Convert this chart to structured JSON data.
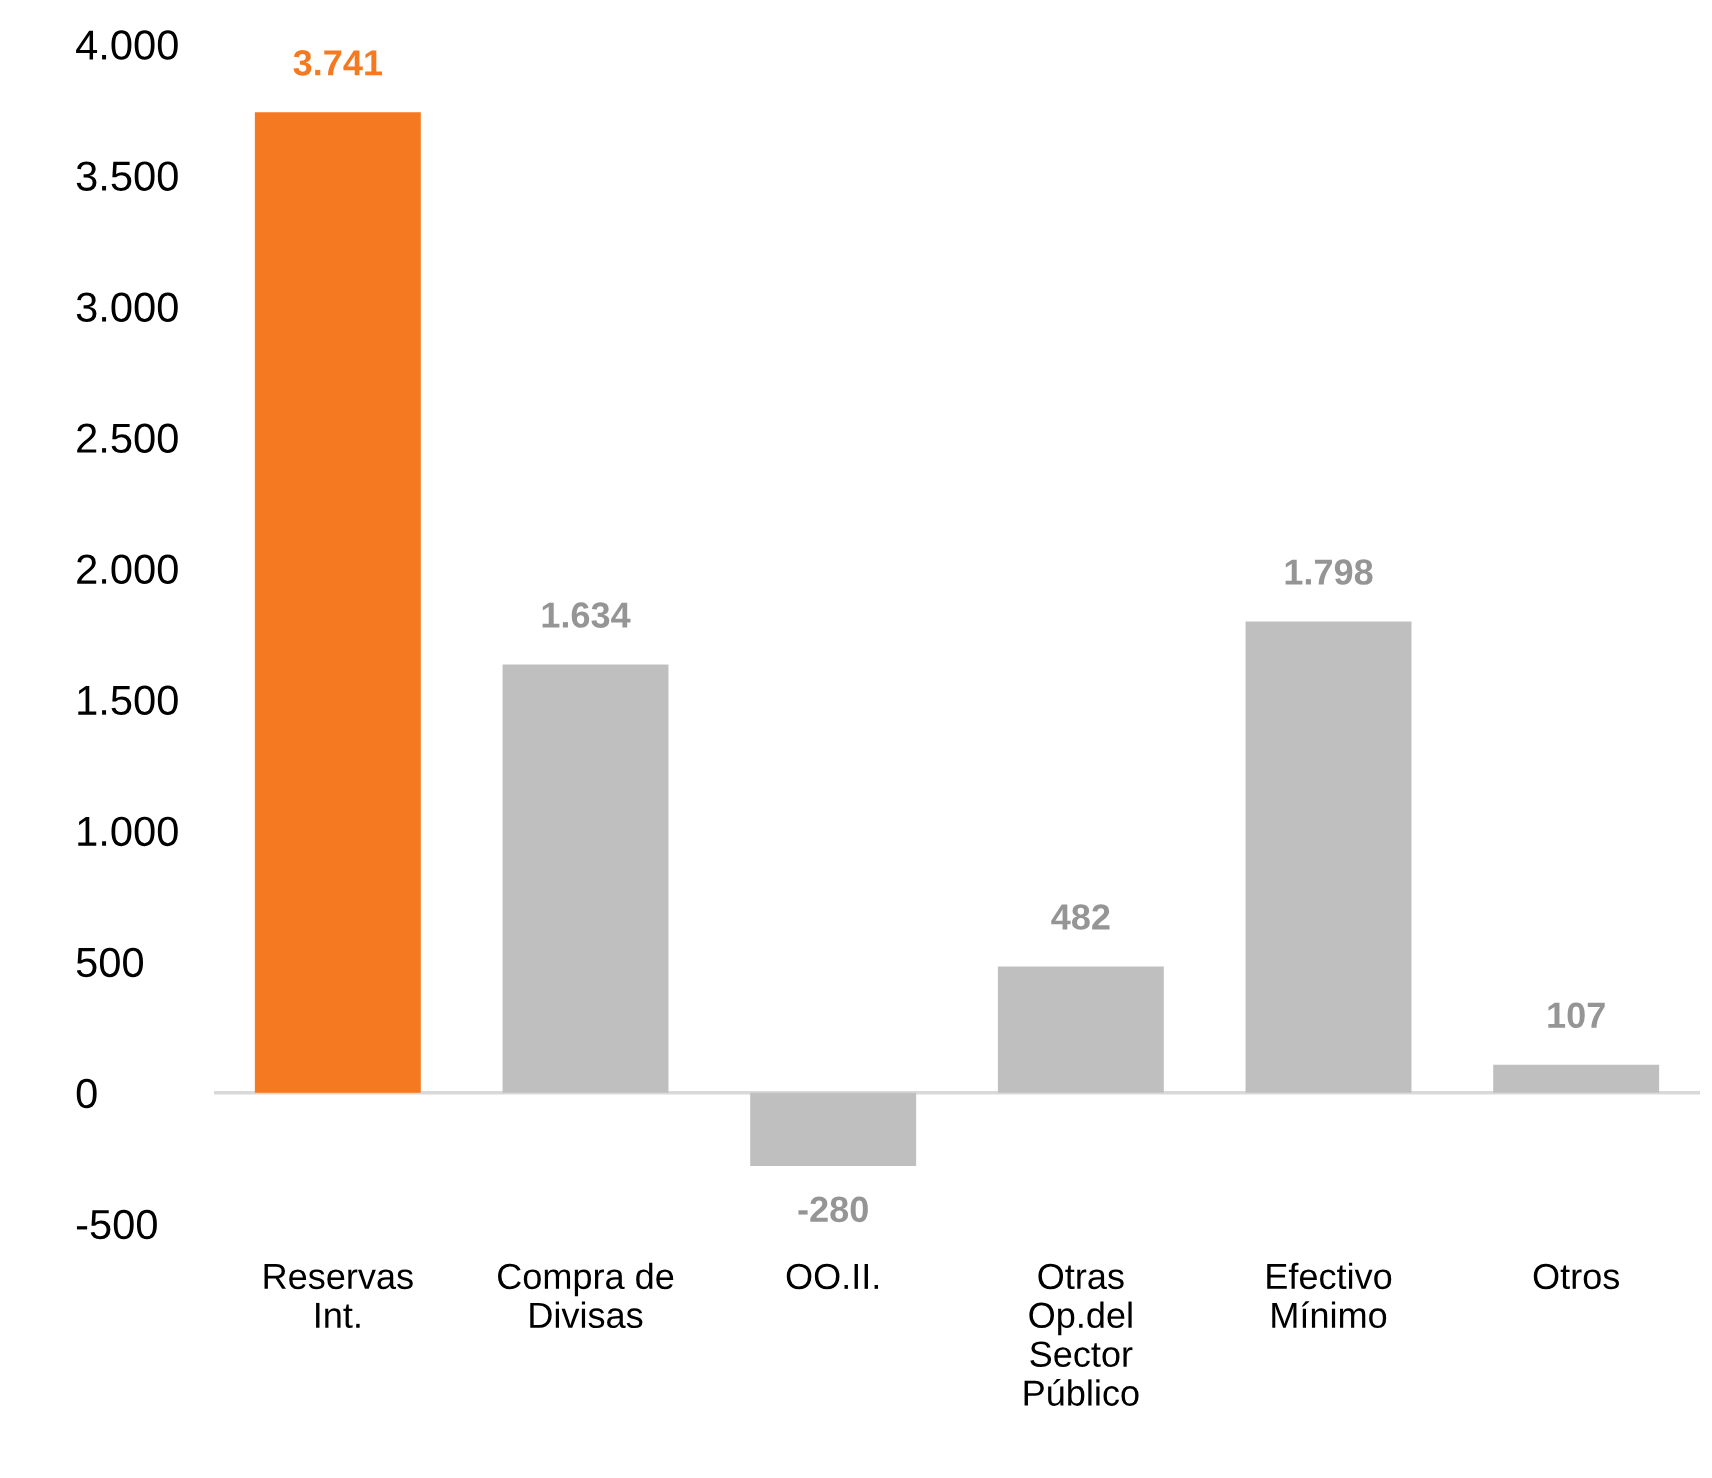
{
  "chart_data": {
    "type": "bar",
    "categories": [
      "Reservas\nInt.",
      "Compra de\nDivisas",
      "OO.II.",
      "Otras\nOp.del\nSector\nPúblico",
      "Efectivo\nMínimo",
      "Otros"
    ],
    "values": [
      3741,
      1634,
      -280,
      482,
      1798,
      107
    ],
    "colors": [
      "#f47920",
      "#bfbfbf",
      "#bfbfbf",
      "#bfbfbf",
      "#bfbfbf",
      "#bfbfbf"
    ],
    "value_labels": [
      "3.741",
      "1.634",
      "-280",
      "482",
      "1.798",
      "107"
    ],
    "ylim": [
      -500,
      4000
    ],
    "yticks": [
      {
        "value": -500,
        "label": "-500"
      },
      0,
      500,
      {
        "value": 1000,
        "label": "1.000"
      },
      {
        "value": 1500,
        "label": "1.500"
      },
      {
        "value": 2000,
        "label": "2.000"
      },
      {
        "value": 2500,
        "label": "2.500"
      },
      {
        "value": 3000,
        "label": "3.000"
      },
      {
        "value": 3500,
        "label": "3.500"
      },
      {
        "value": 4000,
        "label": "4.000"
      }
    ],
    "ref_lines": [
      {
        "axis": "y",
        "value": 0,
        "color": "#d9d9d9"
      }
    ]
  }
}
